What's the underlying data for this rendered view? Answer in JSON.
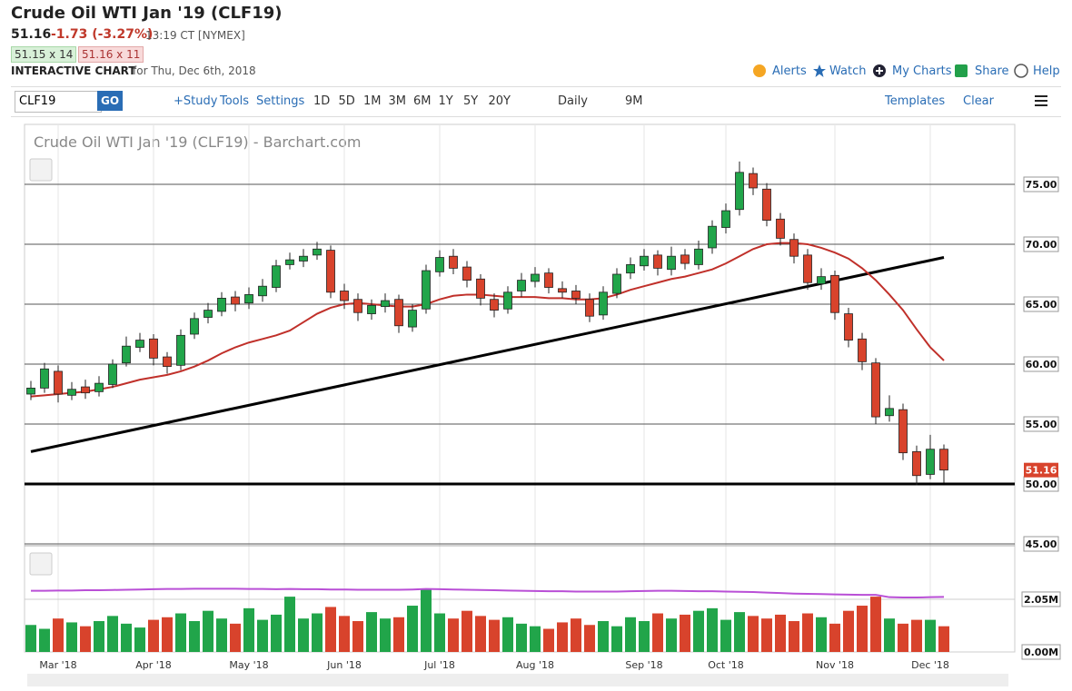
{
  "header": {
    "title": "Crude Oil WTI Jan '19 (CLF19)",
    "last": "51.16",
    "change": "-1.73 (-3.27%)",
    "time": "13:19 CT [NYMEX]",
    "bid": "51.15 x 14",
    "ask": "51.16 x 11",
    "chart_label": "INTERACTIVE CHART",
    "date": "for Thu, Dec 6th, 2018",
    "links": [
      "Alerts",
      "Watch",
      "My Charts",
      "Share",
      "Help"
    ]
  },
  "toolbar": {
    "symbol": "CLF19",
    "go": "GO",
    "study": "+Study",
    "tools": "Tools",
    "settings": "Settings",
    "ranges": [
      "1D",
      "5D",
      "1M",
      "3M",
      "6M",
      "1Y",
      "5Y",
      "20Y"
    ],
    "interval": "Daily",
    "period": "9M",
    "templates": "Templates",
    "clear": "Clear"
  },
  "chart_data": {
    "type": "candlestick",
    "title": "Crude Oil WTI Jan '19 (CLF19) - Barchart.com",
    "categories": [
      null,
      null,
      "Mar '18",
      null,
      null,
      null,
      null,
      null,
      null,
      "Apr '18",
      null,
      null,
      null,
      null,
      null,
      null,
      "May '18",
      null,
      null,
      null,
      null,
      null,
      null,
      "Jun '18",
      null,
      null,
      null,
      null,
      null,
      null,
      "Jul '18",
      null,
      null,
      null,
      null,
      null,
      null,
      "Aug '18",
      null,
      null,
      null,
      null,
      null,
      null,
      null,
      "Sep '18",
      null,
      null,
      null,
      null,
      null,
      "Oct '18",
      null,
      null,
      null,
      null,
      null,
      null,
      null,
      "Nov '18",
      null,
      null,
      null,
      null,
      null,
      null,
      "Dec '18",
      null
    ],
    "open": [
      57.5,
      58.0,
      59.4,
      57.4,
      58.1,
      57.7,
      58.3,
      60.1,
      61.4,
      62.1,
      60.6,
      59.9,
      62.5,
      63.9,
      64.4,
      65.6,
      65.1,
      65.7,
      66.4,
      68.3,
      68.6,
      69.1,
      69.5,
      66.1,
      65.4,
      64.2,
      64.8,
      65.4,
      63.1,
      64.6,
      67.7,
      69.0,
      68.1,
      67.1,
      65.4,
      64.6,
      66.1,
      66.9,
      67.6,
      66.3,
      66.1,
      65.4,
      64.1,
      65.9,
      67.6,
      68.2,
      69.1,
      67.9,
      69.1,
      68.3,
      69.7,
      71.4,
      72.9,
      75.9,
      74.6,
      72.1,
      70.4,
      69.1,
      66.7,
      67.4,
      64.2,
      62.1,
      60.1,
      55.7,
      56.2,
      52.7,
      50.8,
      52.9
    ],
    "high": [
      58.6,
      60.1,
      59.9,
      58.5,
      58.7,
      59.0,
      60.4,
      62.3,
      62.6,
      62.5,
      61.0,
      62.9,
      64.3,
      65.1,
      66.0,
      66.1,
      66.4,
      67.1,
      68.7,
      69.3,
      69.6,
      70.2,
      69.9,
      66.7,
      65.9,
      65.4,
      65.9,
      65.8,
      65.0,
      68.3,
      69.5,
      69.6,
      68.6,
      67.5,
      65.9,
      66.5,
      67.6,
      68.1,
      68.0,
      66.9,
      66.6,
      65.9,
      66.5,
      68.0,
      68.9,
      69.6,
      69.5,
      69.8,
      69.6,
      70.3,
      72.0,
      73.4,
      76.9,
      76.4,
      75.1,
      72.6,
      70.9,
      69.6,
      68.0,
      67.8,
      64.7,
      62.6,
      60.5,
      57.4,
      56.7,
      53.2,
      54.1,
      53.3
    ],
    "low": [
      57.0,
      57.6,
      56.8,
      57.0,
      57.1,
      57.3,
      58.0,
      59.8,
      61.0,
      59.9,
      59.2,
      59.5,
      62.1,
      63.4,
      64.0,
      64.4,
      64.6,
      65.2,
      66.0,
      67.9,
      68.1,
      68.7,
      65.5,
      64.6,
      63.6,
      63.7,
      64.3,
      62.6,
      62.7,
      64.2,
      67.3,
      67.5,
      66.4,
      64.9,
      63.9,
      64.2,
      65.6,
      66.4,
      65.9,
      65.5,
      65.0,
      63.5,
      63.7,
      65.5,
      67.1,
      67.8,
      67.4,
      67.4,
      67.9,
      67.9,
      69.2,
      70.9,
      72.4,
      74.1,
      71.5,
      69.9,
      68.4,
      66.2,
      66.2,
      63.7,
      61.4,
      59.5,
      55.0,
      55.2,
      52.0,
      49.9,
      50.4,
      50.1
    ],
    "close": [
      58.0,
      59.6,
      57.5,
      57.9,
      57.6,
      58.4,
      60.0,
      61.5,
      62.0,
      60.5,
      59.8,
      62.4,
      63.8,
      64.5,
      65.5,
      65.0,
      65.8,
      66.5,
      68.2,
      68.7,
      69.0,
      69.6,
      66.0,
      65.3,
      64.3,
      64.9,
      65.3,
      63.2,
      64.5,
      67.8,
      68.9,
      68.0,
      67.0,
      65.5,
      64.5,
      66.0,
      67.0,
      67.5,
      66.4,
      66.0,
      65.5,
      64.0,
      66.0,
      67.5,
      68.3,
      69.0,
      68.0,
      69.0,
      68.4,
      69.6,
      71.5,
      72.8,
      76.0,
      74.7,
      72.0,
      70.5,
      69.0,
      66.8,
      67.3,
      64.3,
      62.0,
      60.2,
      55.6,
      56.3,
      52.6,
      50.7,
      52.9,
      51.16
    ],
    "moving_average": [
      57.3,
      57.4,
      57.5,
      57.6,
      57.7,
      57.9,
      58.1,
      58.4,
      58.7,
      58.9,
      59.1,
      59.4,
      59.8,
      60.3,
      60.9,
      61.4,
      61.8,
      62.1,
      62.4,
      62.8,
      63.5,
      64.2,
      64.7,
      65.0,
      65.1,
      65.0,
      64.9,
      64.8,
      64.8,
      65.0,
      65.4,
      65.7,
      65.8,
      65.8,
      65.7,
      65.6,
      65.6,
      65.6,
      65.5,
      65.5,
      65.4,
      65.4,
      65.5,
      65.8,
      66.2,
      66.5,
      66.8,
      67.1,
      67.3,
      67.6,
      67.9,
      68.4,
      69.0,
      69.6,
      70.0,
      70.1,
      70.1,
      70.0,
      69.7,
      69.3,
      68.8,
      68.0,
      67.0,
      65.8,
      64.5,
      62.9,
      61.4,
      60.3
    ],
    "volume": [
      1.05,
      0.9,
      1.3,
      1.15,
      1.0,
      1.2,
      1.4,
      1.1,
      0.95,
      1.25,
      1.35,
      1.5,
      1.2,
      1.6,
      1.3,
      1.1,
      1.7,
      1.25,
      1.45,
      2.15,
      1.3,
      1.5,
      1.75,
      1.4,
      1.2,
      1.55,
      1.3,
      1.35,
      1.8,
      2.47,
      1.5,
      1.3,
      1.6,
      1.4,
      1.25,
      1.35,
      1.1,
      1.0,
      0.9,
      1.15,
      1.3,
      1.05,
      1.2,
      1.0,
      1.35,
      1.2,
      1.5,
      1.3,
      1.45,
      1.6,
      1.7,
      1.25,
      1.55,
      1.4,
      1.3,
      1.45,
      1.2,
      1.5,
      1.35,
      1.1,
      1.6,
      1.8,
      2.15,
      1.3,
      1.1,
      1.25,
      1.25,
      1.0
    ],
    "volume_average": [
      2.38,
      2.38,
      2.39,
      2.39,
      2.4,
      2.4,
      2.41,
      2.42,
      2.43,
      2.44,
      2.45,
      2.45,
      2.46,
      2.46,
      2.46,
      2.46,
      2.45,
      2.45,
      2.44,
      2.45,
      2.44,
      2.44,
      2.43,
      2.43,
      2.42,
      2.42,
      2.42,
      2.42,
      2.43,
      2.45,
      2.44,
      2.43,
      2.42,
      2.41,
      2.4,
      2.39,
      2.38,
      2.37,
      2.36,
      2.36,
      2.35,
      2.35,
      2.35,
      2.35,
      2.36,
      2.37,
      2.38,
      2.38,
      2.37,
      2.36,
      2.36,
      2.35,
      2.34,
      2.33,
      2.31,
      2.29,
      2.27,
      2.26,
      2.25,
      2.24,
      2.23,
      2.22,
      2.22,
      2.13,
      2.12,
      2.12,
      2.13,
      2.14
    ],
    "trendline": [
      52.7,
      68.9
    ],
    "support_line": 50,
    "ylim": [
      45,
      80
    ],
    "yticks": [
      {
        "value": 75,
        "label": "75.00"
      },
      {
        "value": 70,
        "label": "70.00"
      },
      {
        "value": 65,
        "label": "65.00"
      },
      {
        "value": 60,
        "label": "60.00"
      },
      {
        "value": 55,
        "label": "55.00"
      },
      {
        "value": 50,
        "label": "50.00"
      },
      {
        "value": 45,
        "label": "45.00"
      }
    ],
    "y2lim": [
      0,
      3.92
    ],
    "y2ticks": [
      {
        "value": 2.05,
        "label": "2.05M"
      },
      {
        "value": 0,
        "label": "0.00M"
      }
    ],
    "up_color": "#21a54a",
    "down_color": "#d8432c",
    "ma_color": "#c0302a",
    "volume_average_color": "#b94fd6",
    "trendline_color": "#000000"
  }
}
